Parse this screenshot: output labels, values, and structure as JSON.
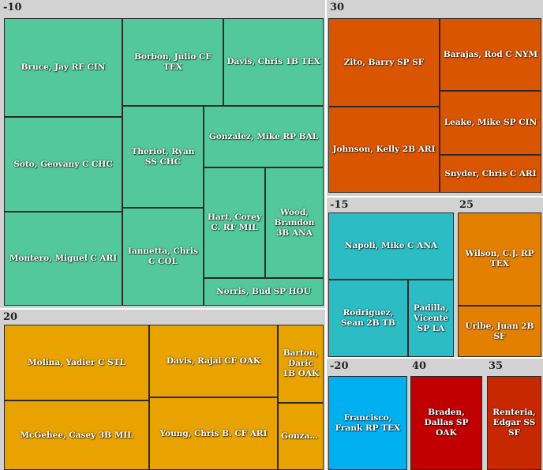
{
  "chart_data": {
    "type": "treemap",
    "groups": [
      {
        "label": "-10",
        "color": "#52c89c",
        "cells": [
          "Bruce, Jay RF CIN",
          "Borbon, Julio CF TEX",
          "Davis, Chris 1B TEX",
          "Soto, Geovany C CHC",
          "Theriot, Ryan SS CHC",
          "Gonzalez, Mike RP BAL",
          "Hart, Corey C. RF MIL",
          "Wood, Brandon 3B ANA",
          "Montero, Miguel C ARI",
          "Iannetta, Chris C COL",
          "Norris, Bud SP HOU"
        ]
      },
      {
        "label": "30",
        "color": "#d95500",
        "cells": [
          "Zito, Barry SP SF",
          "Barajas, Rod C NYM",
          "Leake, Mike SP CIN",
          "Johnson, Kelly 2B ARI",
          "Snyder, Chris C ARI"
        ]
      },
      {
        "label": "-15",
        "color": "#2cbcc4",
        "cells": [
          "Napoli, Mike C ANA",
          "Rodriguez, Sean 2B TB",
          "Padilla, Vicente SP LA"
        ]
      },
      {
        "label": "25",
        "color": "#e48000",
        "cells": [
          "Wilson, C.J. RP TEX",
          "Uribe, Juan 2B SF"
        ]
      },
      {
        "label": "20",
        "color": "#e8a300",
        "cells": [
          "Molina, Yadier C STL",
          "Davis, Rajai CF OAK",
          "Barton, Daric 1B OAK",
          "McGehee, Casey 3B MIL",
          "Young, Chris B. CF ARI",
          "Gonzale..."
        ]
      },
      {
        "label": "-20",
        "color": "#00b0f0",
        "cells": [
          "Francisco, Frank RP TEX"
        ]
      },
      {
        "label": "40",
        "color": "#c00000",
        "cells": [
          "Braden, Dallas SP OAK"
        ]
      },
      {
        "label": "35",
        "color": "#c82800",
        "cells": [
          "Renteria, Edgar SS SF"
        ]
      }
    ]
  }
}
